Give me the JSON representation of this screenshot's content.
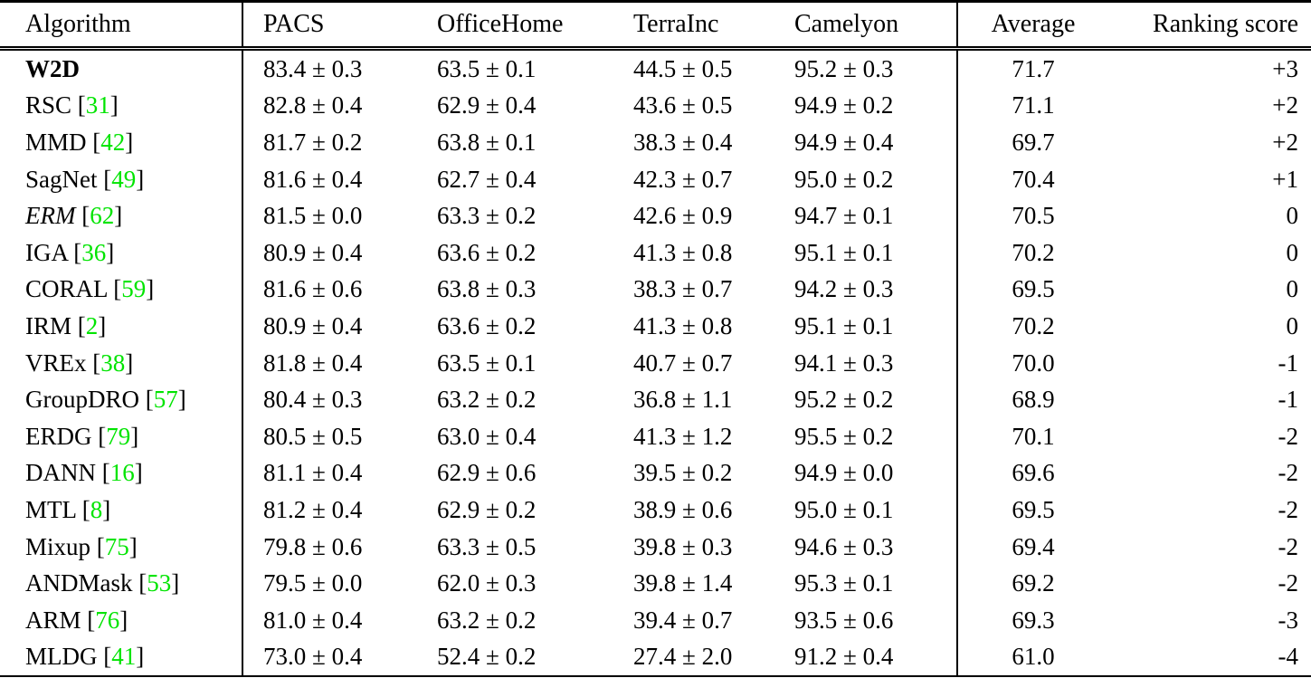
{
  "table": {
    "columns": [
      {
        "key": "algorithm",
        "label": "Algorithm"
      },
      {
        "key": "pacs",
        "label": "PACS"
      },
      {
        "key": "officehome",
        "label": "OfficeHome"
      },
      {
        "key": "terrainc",
        "label": "TerraInc"
      },
      {
        "key": "camelyon",
        "label": "Camelyon"
      },
      {
        "key": "average",
        "label": "Average"
      },
      {
        "key": "ranking",
        "label": "Ranking score"
      }
    ],
    "rows": [
      {
        "algorithm": "W2D",
        "citation": "",
        "style": "bold",
        "pacs": "83.4 ± 0.3",
        "officehome": "63.5 ± 0.1",
        "terrainc": "44.5 ± 0.5",
        "camelyon": "95.2 ± 0.3",
        "average": "71.7",
        "ranking": "+3"
      },
      {
        "algorithm": "RSC",
        "citation": "31",
        "style": "normal",
        "pacs": "82.8 ± 0.4",
        "officehome": "62.9 ± 0.4",
        "terrainc": "43.6 ± 0.5",
        "camelyon": "94.9 ± 0.2",
        "average": "71.1",
        "ranking": "+2"
      },
      {
        "algorithm": "MMD",
        "citation": "42",
        "style": "normal",
        "pacs": "81.7 ± 0.2",
        "officehome": "63.8 ± 0.1",
        "terrainc": "38.3 ± 0.4",
        "camelyon": "94.9 ± 0.4",
        "average": "69.7",
        "ranking": "+2"
      },
      {
        "algorithm": "SagNet",
        "citation": "49",
        "style": "normal",
        "pacs": "81.6 ± 0.4",
        "officehome": "62.7 ± 0.4",
        "terrainc": "42.3 ± 0.7",
        "camelyon": "95.0 ± 0.2",
        "average": "70.4",
        "ranking": "+1"
      },
      {
        "algorithm": "ERM",
        "citation": "62",
        "style": "italic",
        "pacs": "81.5 ± 0.0",
        "officehome": "63.3 ± 0.2",
        "terrainc": "42.6 ± 0.9",
        "camelyon": "94.7 ± 0.1",
        "average": "70.5",
        "ranking": "0"
      },
      {
        "algorithm": "IGA",
        "citation": "36",
        "style": "normal",
        "pacs": "80.9 ± 0.4",
        "officehome": "63.6 ± 0.2",
        "terrainc": "41.3 ± 0.8",
        "camelyon": "95.1 ± 0.1",
        "average": "70.2",
        "ranking": "0"
      },
      {
        "algorithm": "CORAL",
        "citation": "59",
        "style": "normal",
        "pacs": "81.6 ± 0.6",
        "officehome": "63.8 ± 0.3",
        "terrainc": "38.3 ± 0.7",
        "camelyon": "94.2 ± 0.3",
        "average": "69.5",
        "ranking": "0"
      },
      {
        "algorithm": "IRM",
        "citation": "2",
        "style": "normal",
        "pacs": "80.9 ± 0.4",
        "officehome": "63.6 ± 0.2",
        "terrainc": "41.3 ± 0.8",
        "camelyon": "95.1 ± 0.1",
        "average": "70.2",
        "ranking": "0"
      },
      {
        "algorithm": "VREx",
        "citation": "38",
        "style": "normal",
        "pacs": "81.8 ± 0.4",
        "officehome": "63.5 ± 0.1",
        "terrainc": "40.7 ± 0.7",
        "camelyon": "94.1 ± 0.3",
        "average": "70.0",
        "ranking": "-1"
      },
      {
        "algorithm": "GroupDRO",
        "citation": "57",
        "style": "normal",
        "pacs": "80.4 ± 0.3",
        "officehome": "63.2 ± 0.2",
        "terrainc": "36.8 ± 1.1",
        "camelyon": "95.2 ± 0.2",
        "average": "68.9",
        "ranking": "-1"
      },
      {
        "algorithm": "ERDG",
        "citation": "79",
        "style": "normal",
        "pacs": "80.5 ± 0.5",
        "officehome": "63.0 ± 0.4",
        "terrainc": "41.3 ± 1.2",
        "camelyon": "95.5 ± 0.2",
        "average": "70.1",
        "ranking": "-2"
      },
      {
        "algorithm": "DANN",
        "citation": "16",
        "style": "normal",
        "pacs": "81.1 ± 0.4",
        "officehome": "62.9 ± 0.6",
        "terrainc": "39.5 ± 0.2",
        "camelyon": "94.9 ± 0.0",
        "average": "69.6",
        "ranking": "-2"
      },
      {
        "algorithm": "MTL",
        "citation": "8",
        "style": "normal",
        "pacs": "81.2 ± 0.4",
        "officehome": "62.9 ± 0.2",
        "terrainc": "38.9 ± 0.6",
        "camelyon": "95.0 ± 0.1",
        "average": "69.5",
        "ranking": "-2"
      },
      {
        "algorithm": "Mixup",
        "citation": "75",
        "style": "normal",
        "pacs": "79.8 ± 0.6",
        "officehome": "63.3 ± 0.5",
        "terrainc": "39.8 ± 0.3",
        "camelyon": "94.6 ± 0.3",
        "average": "69.4",
        "ranking": "-2"
      },
      {
        "algorithm": "ANDMask",
        "citation": "53",
        "style": "normal",
        "pacs": "79.5 ± 0.0",
        "officehome": "62.0 ± 0.3",
        "terrainc": "39.8 ± 1.4",
        "camelyon": "95.3 ± 0.1",
        "average": "69.2",
        "ranking": "-2"
      },
      {
        "algorithm": "ARM",
        "citation": "76",
        "style": "normal",
        "pacs": "81.0 ± 0.4",
        "officehome": "63.2 ± 0.2",
        "terrainc": "39.4 ± 0.7",
        "camelyon": "93.5 ± 0.6",
        "average": "69.3",
        "ranking": "-3"
      },
      {
        "algorithm": "MLDG",
        "citation": "41",
        "style": "normal",
        "pacs": "73.0 ± 0.4",
        "officehome": "52.4 ± 0.2",
        "terrainc": "27.4 ± 2.0",
        "camelyon": "91.2 ± 0.4",
        "average": "61.0",
        "ranking": "-4"
      }
    ]
  },
  "colors": {
    "citation_green": "#00e400",
    "text": "#000000",
    "rule": "#000000",
    "background": "#ffffff"
  }
}
